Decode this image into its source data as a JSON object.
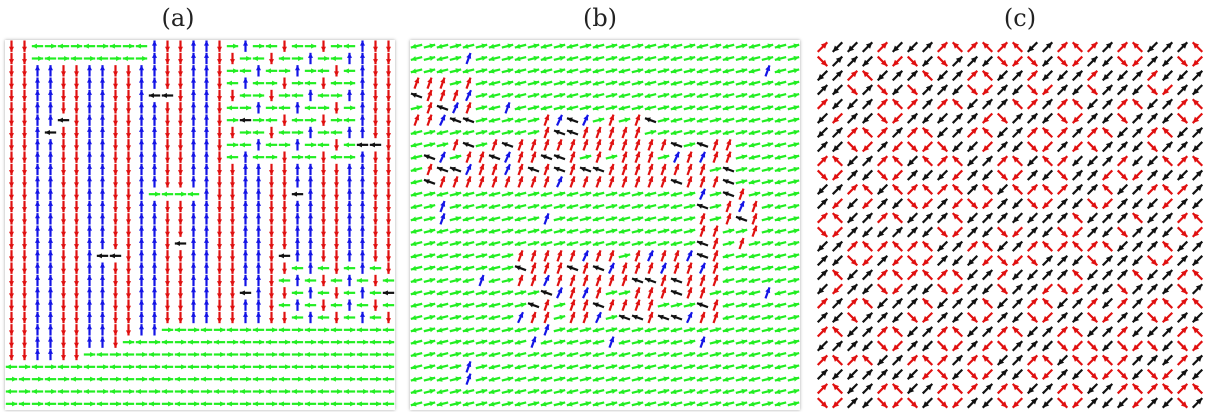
{
  "figure": {
    "panels": [
      {
        "id": "a",
        "label": "(a)",
        "pattern": "stripes-vertical"
      },
      {
        "id": "b",
        "label": "(b)",
        "pattern": "tilted-domains"
      },
      {
        "id": "c",
        "label": "(c)",
        "pattern": "vortex-checkerboard"
      }
    ]
  },
  "colors": {
    "red": "#e01010",
    "blue": "#1414e6",
    "green": "#22ee22",
    "black": "#111111",
    "frame": "#999999"
  }
}
